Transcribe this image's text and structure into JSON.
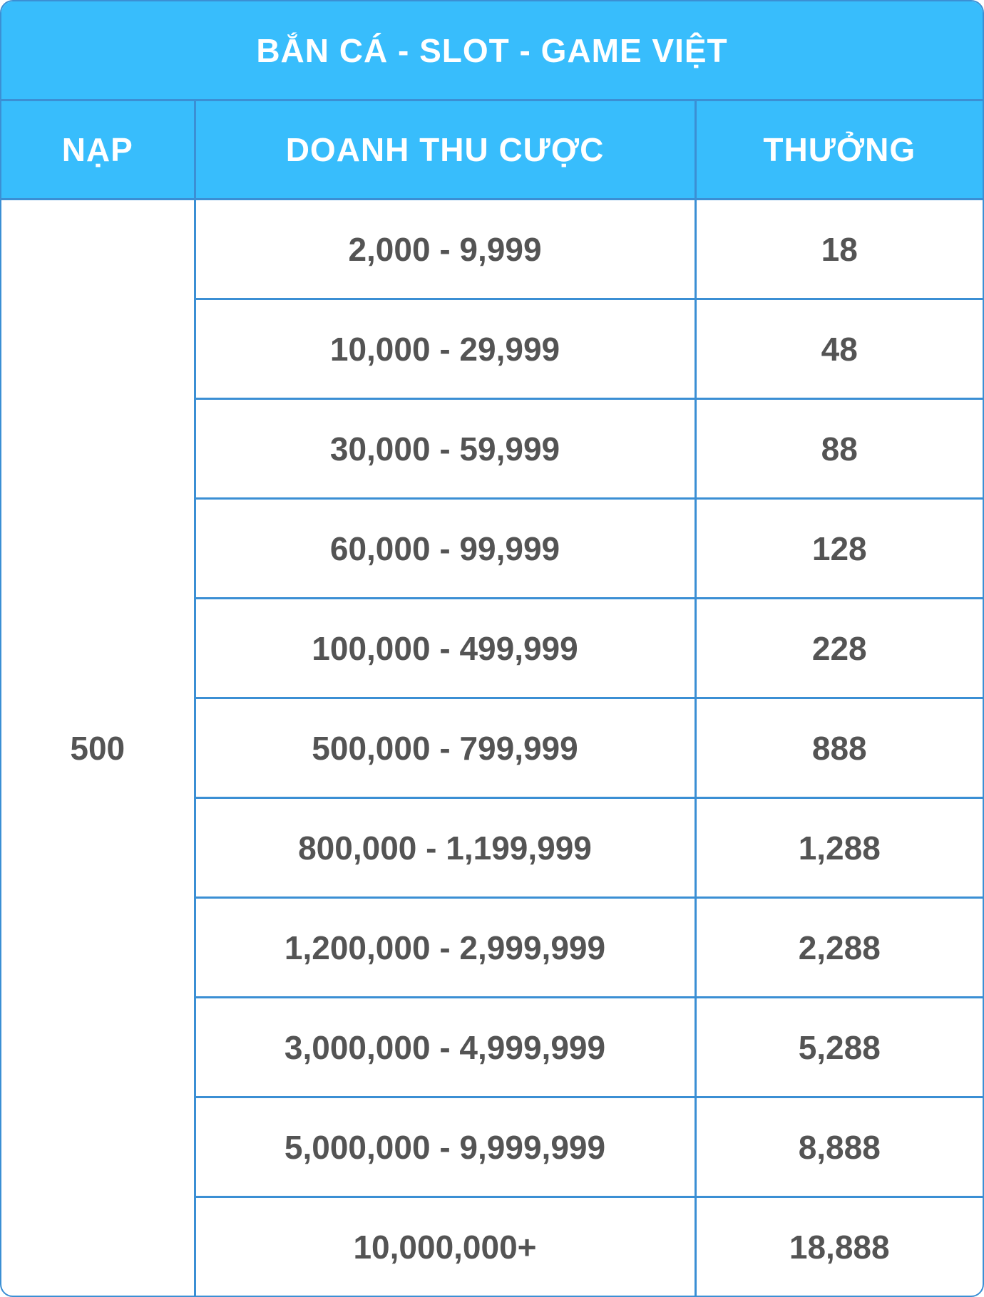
{
  "title": "BẮN CÁ - SLOT - GAME VIỆT",
  "headers": {
    "nap": "NẠP",
    "doanh_thu": "DOANH THU CƯỢC",
    "thuong": "THƯỞNG"
  },
  "nap_value": "500",
  "rows": [
    {
      "doanh_thu": "2,000 - 9,999",
      "thuong": "18"
    },
    {
      "doanh_thu": "10,000 - 29,999",
      "thuong": "48"
    },
    {
      "doanh_thu": "30,000 - 59,999",
      "thuong": "88"
    },
    {
      "doanh_thu": "60,000 - 99,999",
      "thuong": "128"
    },
    {
      "doanh_thu": "100,000 - 499,999",
      "thuong": "228"
    },
    {
      "doanh_thu": "500,000 - 799,999",
      "thuong": "888"
    },
    {
      "doanh_thu": "800,000 - 1,199,999",
      "thuong": "1,288"
    },
    {
      "doanh_thu": "1,200,000 - 2,999,999",
      "thuong": "2,288"
    },
    {
      "doanh_thu": "3,000,000 - 4,999,999",
      "thuong": "5,288"
    },
    {
      "doanh_thu": "5,000,000 - 9,999,999",
      "thuong": "8,888"
    },
    {
      "doanh_thu": "10,000,000+",
      "thuong": "18,888"
    }
  ],
  "colors": {
    "header_bg": "#38bdfc",
    "border": "#3b8fd4",
    "cell_text": "#545454",
    "header_text": "#ffffff"
  }
}
